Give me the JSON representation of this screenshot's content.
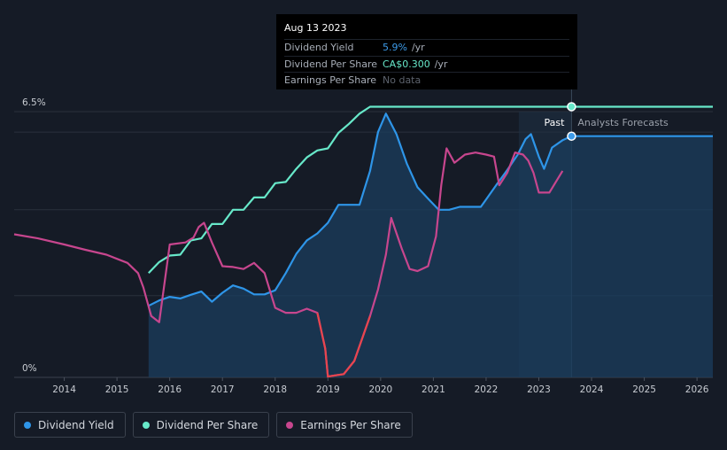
{
  "tooltip": {
    "date": "Aug 13 2023",
    "rows": [
      {
        "label": "Dividend Yield",
        "value": "5.9%",
        "unit": "/yr",
        "color": "#3d9be9"
      },
      {
        "label": "Dividend Per Share",
        "value": "CA$0.300",
        "unit": "/yr",
        "color": "#67e8c9"
      },
      {
        "label": "Earnings Per Share",
        "value": "No data",
        "unit": "",
        "color": "#5d636d"
      }
    ]
  },
  "regions": {
    "past": "Past",
    "forecast": "Analysts Forecasts"
  },
  "legend": [
    {
      "label": "Dividend Yield",
      "color": "#2e95e8"
    },
    {
      "label": "Dividend Per Share",
      "color": "#67e8c9"
    },
    {
      "label": "Earnings Per Share",
      "color": "#c7468e"
    }
  ],
  "chart_data": {
    "type": "line",
    "xlim": [
      2013.05,
      2026.3
    ],
    "ylim": [
      0,
      6.5
    ],
    "y_tick_labels": [
      {
        "value": 6.5,
        "label": "6.5%"
      },
      {
        "value": 0,
        "label": "0%"
      }
    ],
    "x_ticks": [
      2014,
      2015,
      2016,
      2017,
      2018,
      2019,
      2020,
      2021,
      2022,
      2023,
      2024,
      2025,
      2026
    ],
    "today": 2023.62,
    "past_shade_start": 2022.62,
    "grid": true,
    "legend_position": "bottom-left",
    "series": [
      {
        "name": "Dividend Yield",
        "color": "#2e95e8",
        "fill": true,
        "x": [
          2015.6,
          2015.8,
          2016.0,
          2016.2,
          2016.4,
          2016.6,
          2016.8,
          2017.0,
          2017.2,
          2017.4,
          2017.6,
          2017.8,
          2018.0,
          2018.2,
          2018.4,
          2018.6,
          2018.8,
          2019.0,
          2019.2,
          2019.4,
          2019.6,
          2019.8,
          2019.95,
          2020.1,
          2020.3,
          2020.5,
          2020.7,
          2020.9,
          2021.1,
          2021.3,
          2021.5,
          2021.7,
          2021.9,
          2022.0,
          2022.2,
          2022.4,
          2022.6,
          2022.75,
          2022.85,
          2023.0,
          2023.1,
          2023.25,
          2023.45,
          2023.62,
          2024.0,
          2025.0,
          2026.3
        ],
        "y": [
          1.75,
          1.88,
          1.97,
          1.93,
          2.02,
          2.1,
          1.85,
          2.07,
          2.25,
          2.17,
          2.03,
          2.03,
          2.13,
          2.55,
          3.02,
          3.35,
          3.52,
          3.78,
          4.22,
          4.22,
          4.22,
          5.05,
          6.0,
          6.45,
          5.95,
          5.22,
          4.65,
          4.37,
          4.1,
          4.1,
          4.17,
          4.17,
          4.17,
          4.35,
          4.72,
          5.07,
          5.45,
          5.83,
          5.95,
          5.4,
          5.1,
          5.62,
          5.8,
          5.9,
          5.9,
          5.9,
          5.9
        ]
      },
      {
        "name": "Dividend Per Share",
        "color": "#67e8c9",
        "fill": false,
        "x": [
          2015.6,
          2015.8,
          2016.0,
          2016.2,
          2016.4,
          2016.6,
          2016.8,
          2017.0,
          2017.2,
          2017.4,
          2017.6,
          2017.8,
          2018.0,
          2018.2,
          2018.4,
          2018.6,
          2018.8,
          2019.0,
          2019.2,
          2019.4,
          2019.6,
          2019.8,
          2020.0,
          2020.2,
          2020.4,
          2021.0,
          2022.0,
          2023.0,
          2023.62,
          2024.0,
          2025.0,
          2026.3
        ],
        "y": [
          2.55,
          2.82,
          2.98,
          3.0,
          3.35,
          3.4,
          3.75,
          3.75,
          4.1,
          4.1,
          4.4,
          4.4,
          4.75,
          4.78,
          5.1,
          5.38,
          5.55,
          5.6,
          5.98,
          6.2,
          6.45,
          6.62,
          6.62,
          6.62,
          6.62,
          6.62,
          6.62,
          6.62,
          6.62,
          6.62,
          6.62,
          6.62
        ]
      },
      {
        "name": "Earnings Per Share",
        "color": "#c7468e",
        "negative_color": "#e8454e",
        "negative_threshold": 1.18,
        "fill": false,
        "x": [
          2013.05,
          2013.5,
          2014.0,
          2014.4,
          2014.8,
          2015.2,
          2015.4,
          2015.5,
          2015.65,
          2015.8,
          2016.0,
          2016.3,
          2016.45,
          2016.55,
          2016.65,
          2016.8,
          2017.0,
          2017.2,
          2017.4,
          2017.6,
          2017.8,
          2018.0,
          2018.2,
          2018.4,
          2018.6,
          2018.8,
          2018.95,
          2019.0,
          2019.3,
          2019.5,
          2019.8,
          2019.95,
          2020.1,
          2020.2,
          2020.4,
          2020.55,
          2020.7,
          2020.9,
          2021.05,
          2021.15,
          2021.25,
          2021.4,
          2021.6,
          2021.8,
          2022.0,
          2022.15,
          2022.25,
          2022.4,
          2022.55,
          2022.7,
          2022.8,
          2022.9,
          2023.0,
          2023.2,
          2023.45
        ],
        "y": [
          3.5,
          3.4,
          3.25,
          3.12,
          3.0,
          2.8,
          2.55,
          2.2,
          1.5,
          1.35,
          3.25,
          3.3,
          3.42,
          3.68,
          3.78,
          3.3,
          2.72,
          2.7,
          2.65,
          2.8,
          2.55,
          1.7,
          1.58,
          1.58,
          1.68,
          1.58,
          0.7,
          0.02,
          0.08,
          0.4,
          1.5,
          2.15,
          3.0,
          3.9,
          3.15,
          2.65,
          2.6,
          2.72,
          3.45,
          4.7,
          5.6,
          5.25,
          5.45,
          5.5,
          5.45,
          5.4,
          4.7,
          5.0,
          5.5,
          5.45,
          5.3,
          5.0,
          4.52,
          4.52,
          5.05
        ]
      }
    ]
  }
}
